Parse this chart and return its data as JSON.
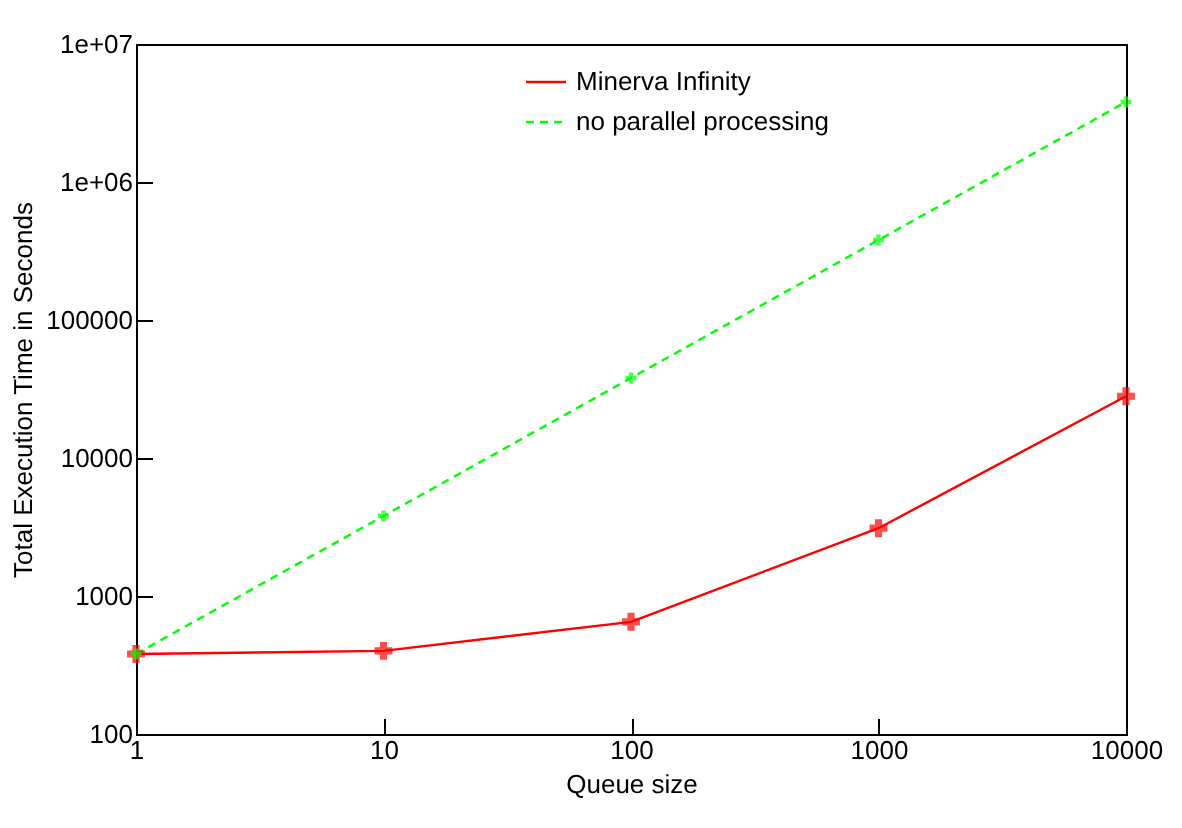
{
  "chart_data": {
    "type": "line",
    "xlabel": "Queue size",
    "ylabel": "Total Execution Time in Seconds",
    "x": [
      1,
      10,
      100,
      1000,
      10000
    ],
    "series": [
      {
        "name": "Minerva Infinity",
        "color": "#ff0000",
        "line_style": "solid",
        "values": [
          380,
          400,
          650,
          3100,
          28000
        ]
      },
      {
        "name": "no parallel processing",
        "color": "#00ff00",
        "line_style": "dashed",
        "values": [
          380,
          3800,
          38000,
          380000,
          3800000
        ]
      }
    ],
    "log": "xy",
    "marker": "cross",
    "legend": "top right",
    "grid": false,
    "xlim": [
      1,
      10000
    ],
    "xticks": [
      1,
      10,
      100,
      1000,
      10000
    ],
    "ylim": [
      100,
      10000000
    ],
    "yticks": [
      100,
      1000,
      10000,
      100000,
      {
        "value": 1000000,
        "label": "1e+06"
      },
      {
        "value": 10000000,
        "label": "1e+07"
      }
    ]
  }
}
